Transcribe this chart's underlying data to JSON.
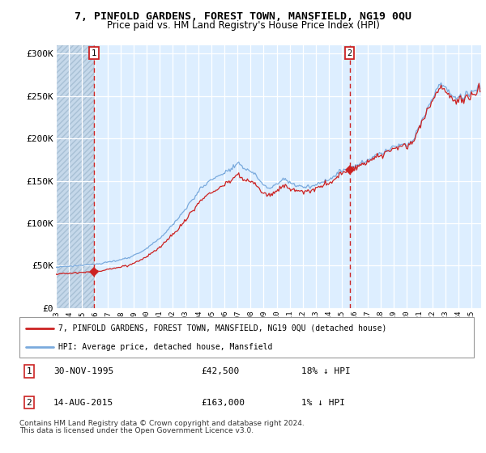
{
  "title": "7, PINFOLD GARDENS, FOREST TOWN, MANSFIELD, NG19 0QU",
  "subtitle": "Price paid vs. HM Land Registry's House Price Index (HPI)",
  "legend_line1": "7, PINFOLD GARDENS, FOREST TOWN, MANSFIELD, NG19 0QU (detached house)",
  "legend_line2": "HPI: Average price, detached house, Mansfield",
  "transaction1": {
    "label": "1",
    "date": "30-NOV-1995",
    "price": 42500,
    "hpi_pct": "18% ↓ HPI",
    "date_num": 1995.92
  },
  "transaction2": {
    "label": "2",
    "date": "14-AUG-2015",
    "price": 163000,
    "hpi_pct": "1% ↓ HPI",
    "date_num": 2015.62
  },
  "footnote1": "Contains HM Land Registry data © Crown copyright and database right 2024.",
  "footnote2": "This data is licensed under the Open Government Licence v3.0.",
  "hpi_color": "#7aaadd",
  "price_color": "#cc2222",
  "marker_color": "#cc2222",
  "background_chart": "#ddeeff",
  "background_hatch_color": "#c5d8ea",
  "grid_color": "#ffffff",
  "ylim": [
    0,
    310000
  ],
  "yticks": [
    0,
    50000,
    100000,
    150000,
    200000,
    250000,
    300000
  ],
  "ytick_labels": [
    "£0",
    "£50K",
    "£100K",
    "£150K",
    "£200K",
    "£250K",
    "£300K"
  ],
  "xstart": 1993.0,
  "xend": 2025.75,
  "hpi_anchors_t": [
    1993.0,
    1994.0,
    1995.0,
    1996.0,
    1997.0,
    1998.0,
    1999.0,
    2000.0,
    2001.0,
    2002.0,
    2003.0,
    2004.0,
    2005.0,
    2006.0,
    2007.0,
    2007.75,
    2008.5,
    2009.0,
    2009.5,
    2010.0,
    2010.5,
    2011.0,
    2011.5,
    2012.0,
    2013.0,
    2014.0,
    2014.5,
    2015.0,
    2015.5,
    2016.0,
    2017.0,
    2018.0,
    2019.0,
    2020.0,
    2020.5,
    2021.0,
    2021.5,
    2022.0,
    2022.5,
    2022.75,
    2023.0,
    2023.5,
    2024.0,
    2024.5,
    2025.0,
    2025.5
  ],
  "hpi_anchors_v": [
    48000,
    49000,
    50500,
    52000,
    54000,
    57000,
    62000,
    70000,
    82000,
    98000,
    118000,
    138000,
    152000,
    160000,
    168000,
    165000,
    155000,
    145000,
    140000,
    148000,
    152000,
    148000,
    145000,
    143000,
    145000,
    152000,
    157000,
    162000,
    165000,
    168000,
    175000,
    182000,
    190000,
    192000,
    198000,
    215000,
    230000,
    248000,
    262000,
    265000,
    258000,
    252000,
    248000,
    250000,
    253000,
    258000
  ],
  "price_scale1_t": 1995.92,
  "price_scale1_v": 42500,
  "price_scale2_t": 2015.62,
  "price_scale2_v": 163000
}
